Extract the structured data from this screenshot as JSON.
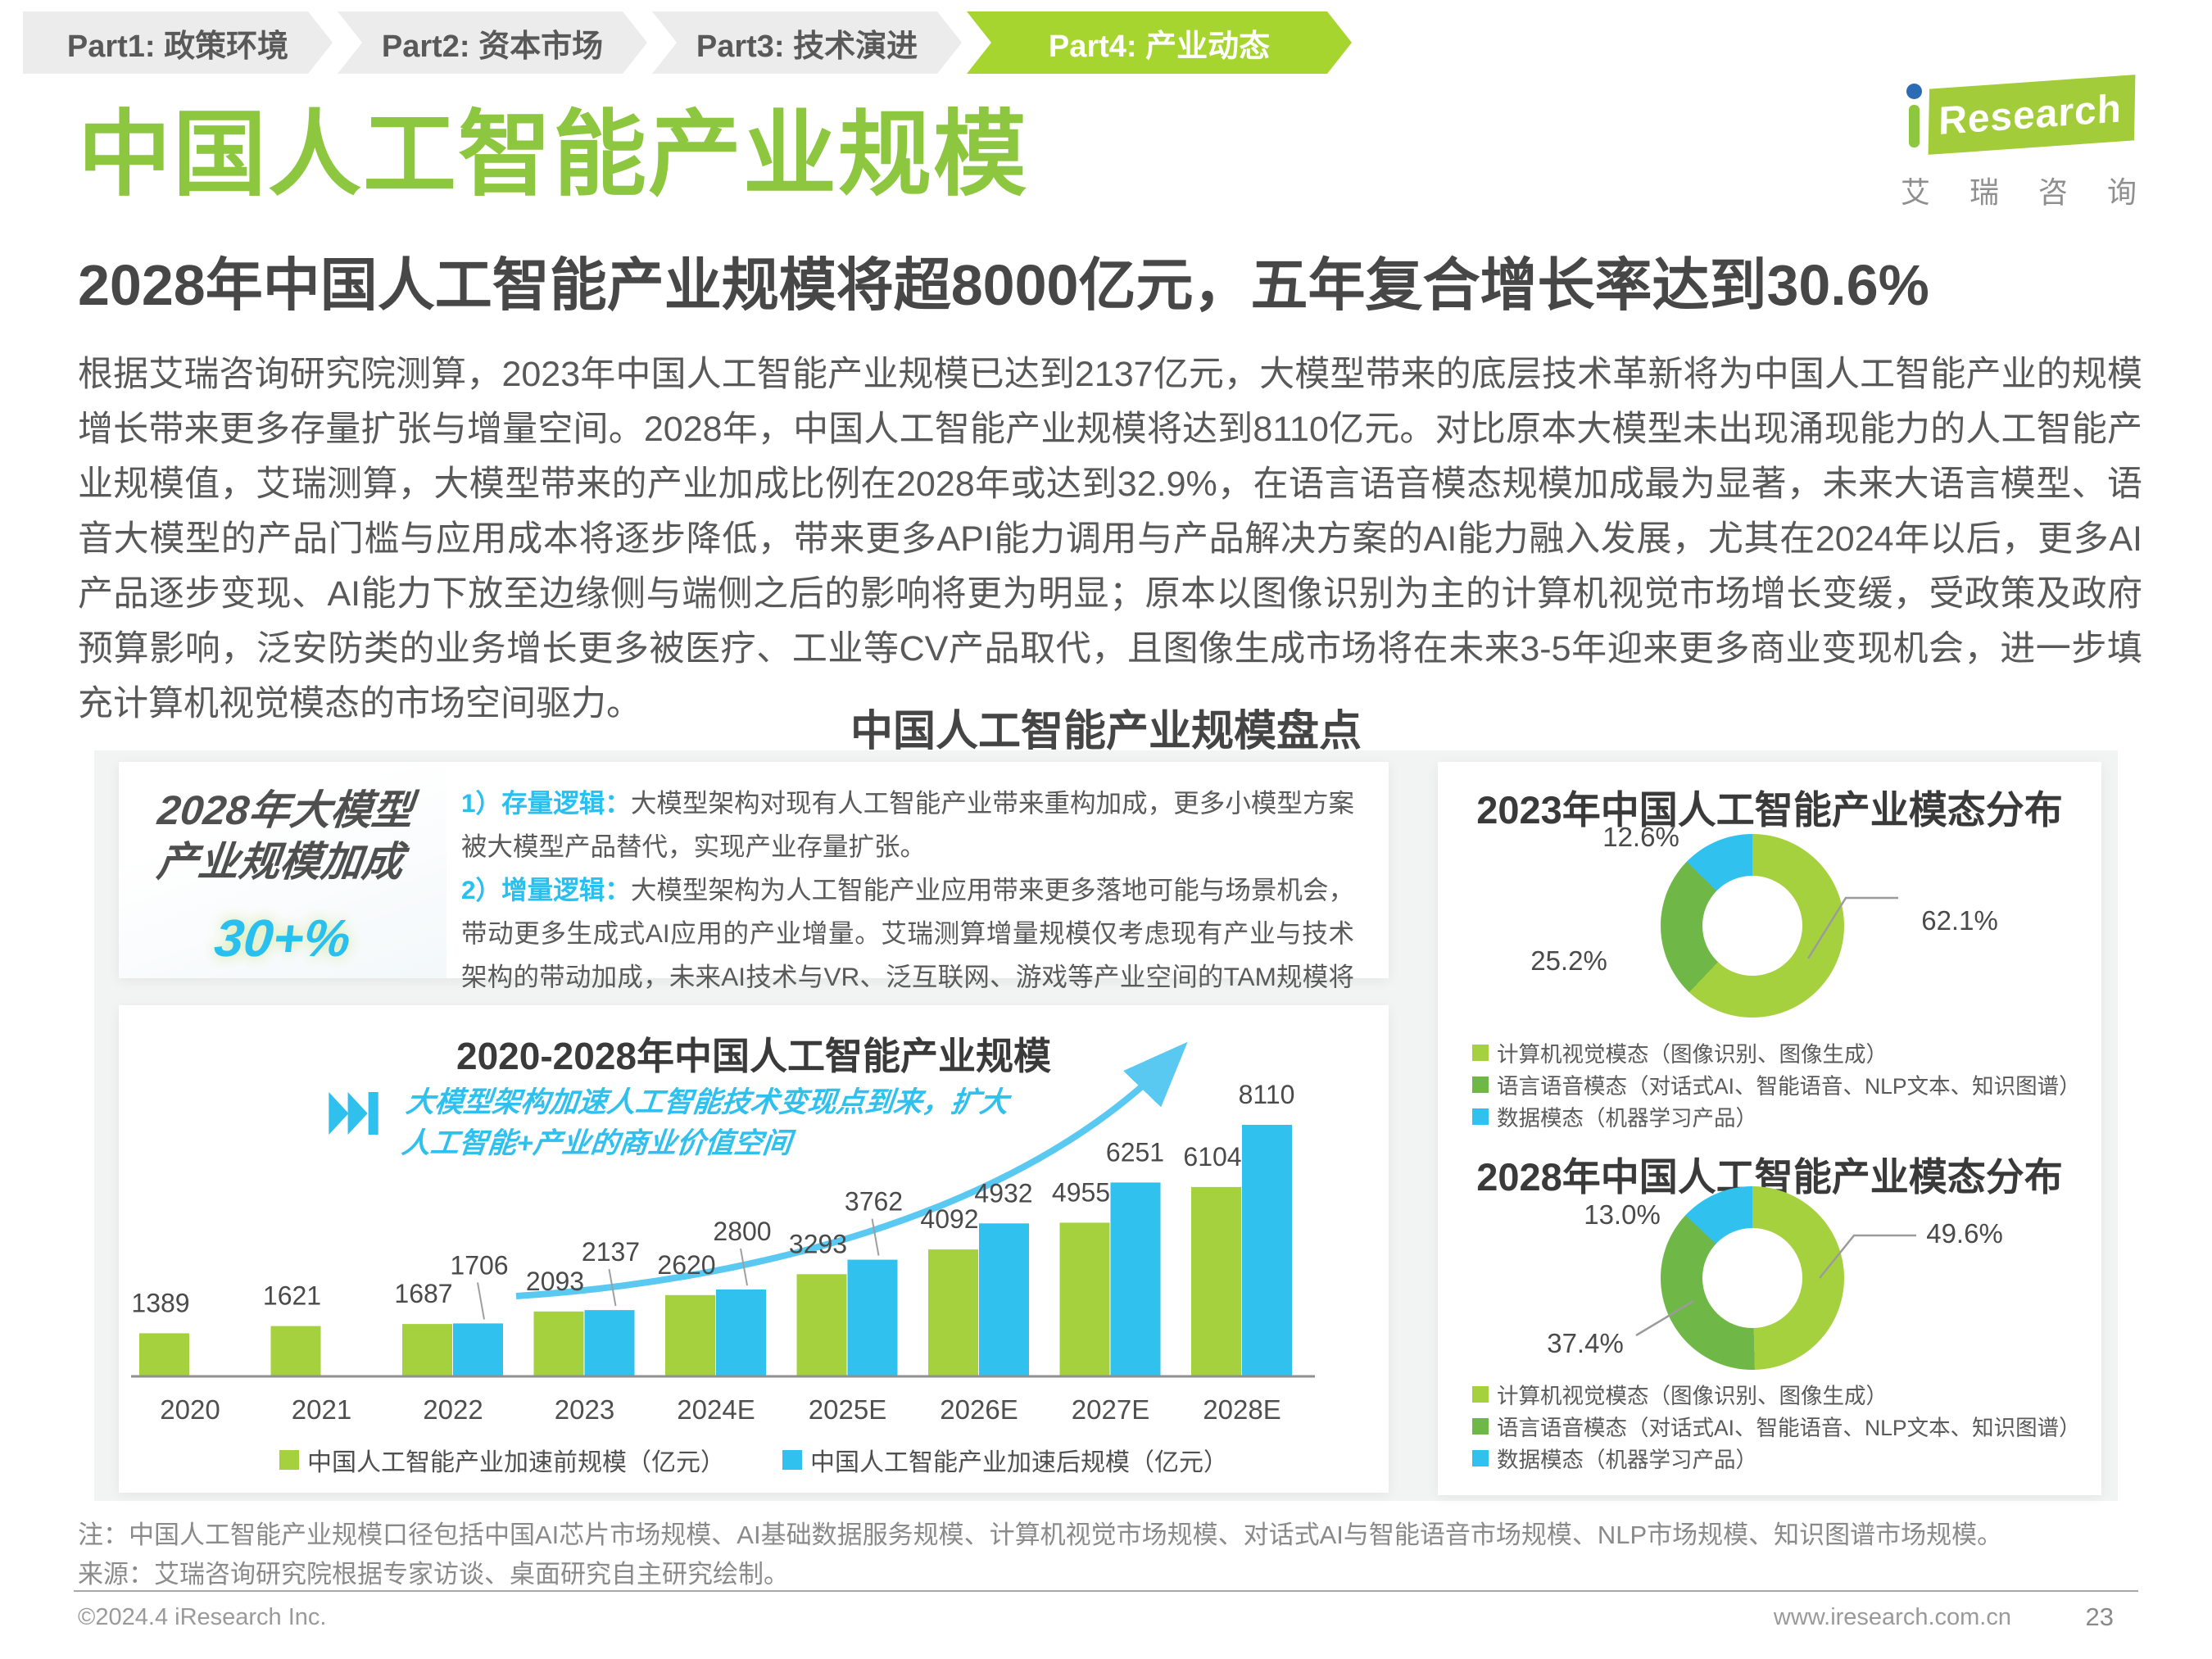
{
  "breadcrumb": {
    "items": [
      {
        "label": "Part1: 政策环境",
        "active": false
      },
      {
        "label": "Part2: 资本市场",
        "active": false
      },
      {
        "label": "Part3: 技术演进",
        "active": false
      },
      {
        "label": "Part4: 产业动态",
        "active": true
      }
    ]
  },
  "header": {
    "title": "中国人工智能产业规模",
    "logo": {
      "brand": "Research",
      "chinese": "艾瑞咨询"
    }
  },
  "subtitle": "2028年中国人工智能产业规模将超8000亿元，五年复合增长率达到30.6%",
  "paragraph": "根据艾瑞咨询研究院测算，2023年中国人工智能产业规模已达到2137亿元，大模型带来的底层技术革新将为中国人工智能产业的规模增长带来更多存量扩张与增量空间。2028年，中国人工智能产业规模将达到8110亿元。对比原本大模型未出现涌现能力的人工智能产业规模值，艾瑞测算，大模型带来的产业加成比例在2028年或达到32.9%，在语言语音模态规模加成最为显著，未来大语言模型、语音大模型的产品门槛与应用成本将逐步降低，带来更多API能力调用与产品解决方案的AI能力融入发展，尤其在2024年以后，更多AI产品逐步变现、AI能力下放至边缘侧与端侧之后的影响将更为明显；原本以图像识别为主的计算机视觉市场增长变缓，受政策及政府预算影响，泛安防类的业务增长更多被医疗、工业等CV产品取代，且图像生成市场将在未来3-5年迎来更多商业变现机会，进一步填充计算机视觉模态的市场空间驱力。",
  "section_title": "中国人工智能产业规模盘点",
  "highlight_box": {
    "title_line1": "2028年大模型",
    "title_line2": "产业规模加成",
    "value": "30+%"
  },
  "logic_box": {
    "item1_label": "1）存量逻辑：",
    "item1_text": "大模型架构对现有人工智能产业带来重构加成，更多小模型方案被大模型产品替代，实现产业存量扩张。",
    "item2_label": "2）增量逻辑：",
    "item2_text": "大模型架构为人工智能产业应用带来更多落地可能与场景机会，带动更多生成式AI应用的产业增量。艾瑞测算增量规模仅考虑现有产业与技术架构的带动加成，未来AI技术与VR、泛互联网、游戏等产业空间的TAM规模将更具想象空间。"
  },
  "chart_data": [
    {
      "type": "bar",
      "title": "2020-2028年中国人工智能产业规模",
      "annotation": "大模型架构加速人工智能技术变现点到来，扩大\n人工智能+产业的商业价值空间",
      "categories": [
        "2020",
        "2021",
        "2022",
        "2023",
        "2024E",
        "2025E",
        "2026E",
        "2027E",
        "2028E"
      ],
      "series": [
        {
          "name": "中国人工智能产业加速前规模（亿元）",
          "color": "#a6d13f",
          "values": [
            1389,
            1621,
            1687,
            2093,
            2620,
            3293,
            4092,
            4955,
            6104
          ]
        },
        {
          "name": "中国人工智能产业加速后规模（亿元）",
          "color": "#31c1ee",
          "values": [
            null,
            null,
            1706,
            2137,
            2800,
            3762,
            4932,
            6251,
            8110
          ]
        }
      ],
      "ylim": [
        0,
        8110
      ],
      "grid": false,
      "legend_position": "bottom"
    },
    {
      "type": "pie",
      "title": "2023年中国人工智能产业模态分布",
      "labels": [
        "计算机视觉模态（图像识别、图像生成）",
        "语言语音模态（对话式AI、智能语音、NLP文本、知识图谱）",
        "数据模态（机器学习产品）"
      ],
      "values": [
        62.1,
        25.2,
        12.6
      ],
      "colors": [
        "#a6d13f",
        "#6fb746",
        "#31c1ee"
      ]
    },
    {
      "type": "pie",
      "title": "2028年中国人工智能产业模态分布",
      "labels": [
        "计算机视觉模态（图像识别、图像生成）",
        "语言语音模态（对话式AI、智能语音、NLP文本、知识图谱）",
        "数据模态（机器学习产品）"
      ],
      "values": [
        49.6,
        37.4,
        13.0
      ],
      "colors": [
        "#a6d13f",
        "#6fb746",
        "#31c1ee"
      ]
    }
  ],
  "notes": {
    "note": "注：中国人工智能产业规模口径包括中国AI芯片市场规模、AI基础数据服务规模、计算机视觉市场规模、对话式AI与智能语音市场规模、NLP市场规模、知识图谱市场规模。",
    "source": "来源：艾瑞咨询研究院根据专家访谈、桌面研究自主研究绘制。"
  },
  "footer": {
    "copyright": "©2024.4 iResearch Inc.",
    "url": "www.iresearch.com.cn",
    "page": "23"
  }
}
